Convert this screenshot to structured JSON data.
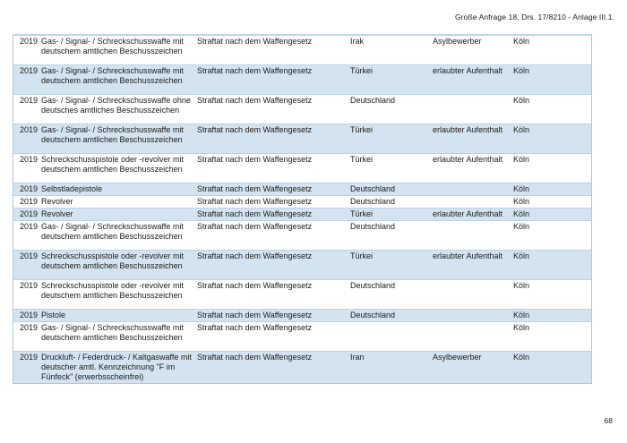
{
  "page": {
    "header_right": "Große Anfrage 18, Drs. 17/8210 - Anlage III.1.",
    "page_number": "68"
  },
  "colors": {
    "row_shading": "#d3e4f0",
    "table_border": "#a9c9df",
    "text": "#1a1a1a"
  },
  "table": {
    "rows": [
      {
        "year": "2019",
        "weapon": "Gas- / Signal- / Schreckschusswaffe mit deutschem amtlichen Beschusszeichen",
        "offense": "Straftat nach dem Waffengesetz",
        "nationality": "Irak",
        "status": "Asylbewerber",
        "city": "Köln"
      },
      {
        "year": "2019",
        "weapon": "Gas- / Signal- / Schreckschusswaffe mit deutschem amtlichen Beschusszeichen",
        "offense": "Straftat nach dem Waffengesetz",
        "nationality": "Türkei",
        "status": "erlaubter Aufenthalt",
        "city": "Köln"
      },
      {
        "year": "2019",
        "weapon": "Gas- / Signal- / Schreckschusswaffe ohne deutsches amtliches Beschusszeichen",
        "offense": "Straftat nach dem Waffengesetz",
        "nationality": "Deutschland",
        "status": "",
        "city": "Köln"
      },
      {
        "year": "2019",
        "weapon": "Gas- / Signal- / Schreckschusswaffe mit deutschem amtlichen Beschusszeichen",
        "offense": "Straftat nach dem Waffengesetz",
        "nationality": "Türkei",
        "status": "erlaubter Aufenthalt",
        "city": "Köln"
      },
      {
        "year": "2019",
        "weapon": "Schreckschusspistole oder -revolver mit deutschem amtlichen Beschusszeichen",
        "offense": "Straftat nach dem Waffengesetz",
        "nationality": "Türkei",
        "status": "erlaubter Aufenthalt",
        "city": "Köln"
      },
      {
        "year": "2019",
        "weapon": "Selbstladepistole",
        "offense": "Straftat nach dem Waffengesetz",
        "nationality": "Deutschland",
        "status": "",
        "city": "Köln"
      },
      {
        "year": "2019",
        "weapon": "Revolver",
        "offense": "Straftat nach dem Waffengesetz",
        "nationality": "Deutschland",
        "status": "",
        "city": "Köln"
      },
      {
        "year": "2019",
        "weapon": "Revolver",
        "offense": "Straftat nach dem Waffengesetz",
        "nationality": "Türkei",
        "status": "erlaubter Aufenthalt",
        "city": "Köln"
      },
      {
        "year": "2019",
        "weapon": "Gas- / Signal- / Schreckschusswaffe mit deutschem amtlichen Beschusszeichen",
        "offense": "Straftat nach dem Waffengesetz",
        "nationality": "Deutschland",
        "status": "",
        "city": "Köln"
      },
      {
        "year": "2019",
        "weapon": "Schreckschusspistole oder -revolver mit deutschem amtlichen Beschusszeichen",
        "offense": "Straftat nach dem Waffengesetz",
        "nationality": "Türkei",
        "status": "erlaubter Aufenthalt",
        "city": "Köln"
      },
      {
        "year": "2019",
        "weapon": "Schreckschusspistole oder -revolver mit deutschem amtlichen Beschusszeichen",
        "offense": "Straftat nach dem Waffengesetz",
        "nationality": "Deutschland",
        "status": "",
        "city": "Köln"
      },
      {
        "year": "2019",
        "weapon": "Pistole",
        "offense": "Straftat nach dem Waffengesetz",
        "nationality": "Deutschland",
        "status": "",
        "city": "Köln"
      },
      {
        "year": "2019",
        "weapon": "Gas- / Signal- / Schreckschusswaffe mit deutschem amtlichen Beschusszeichen",
        "offense": "Straftat nach dem Waffengesetz",
        "nationality": "",
        "status": "",
        "city": "Köln"
      },
      {
        "year": "2019",
        "weapon": "Druckluft- / Federdruck- / Kaltgaswaffe mit deutscher amtl. Kennzeichnung \"F im Fünfeck\" (erwerbsscheinfrei)",
        "offense": "Straftat nach dem Waffengesetz",
        "nationality": "Iran",
        "status": "Asylbewerber",
        "city": "Köln"
      }
    ]
  }
}
